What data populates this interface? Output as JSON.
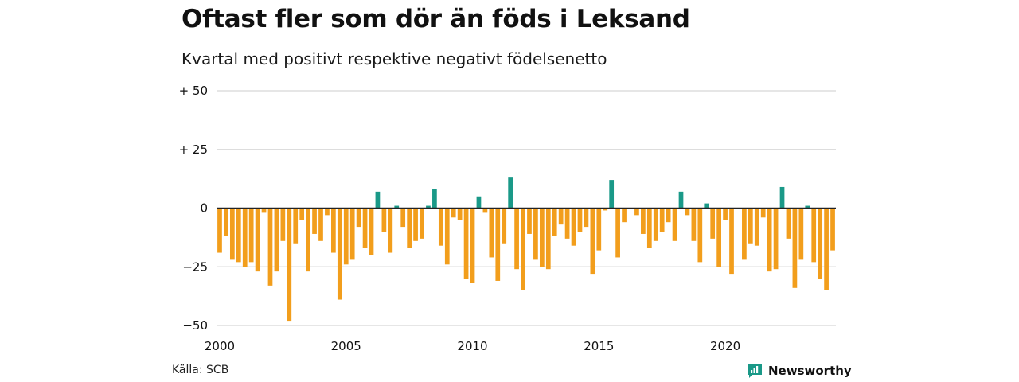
{
  "header": {
    "title": "Oftast fler som dör än föds i Leksand",
    "subtitle": "Kvartal med positivt respektive negativt födelsenetto"
  },
  "footer": {
    "source": "Källa: SCB",
    "brand": "Newsworthy",
    "brand_icon": "newsworthy-logo-icon"
  },
  "colors": {
    "positive": "#1a9988",
    "negative": "#f29e1c",
    "grid": "#dddddd",
    "baseline": "#222222",
    "brand": "#1a9988"
  },
  "chart_data": {
    "type": "bar",
    "title": "Oftast fler som dör än föds i Leksand",
    "subtitle": "Kvartal med positivt respektive negativt födelsenetto",
    "xlabel": "",
    "ylabel": "",
    "ylim": [
      -50,
      50
    ],
    "grid": true,
    "legend": "none",
    "y_ticks": [
      {
        "value": 50,
        "label": "+ 50"
      },
      {
        "value": 25,
        "label": "+ 25"
      },
      {
        "value": 0,
        "label": "0"
      },
      {
        "value": -25,
        "label": "−25"
      },
      {
        "value": -50,
        "label": "−50"
      }
    ],
    "x_ticks": [
      {
        "index": 0,
        "label": "2000"
      },
      {
        "index": 20,
        "label": "2005"
      },
      {
        "index": 40,
        "label": "2010"
      },
      {
        "index": 60,
        "label": "2015"
      },
      {
        "index": 80,
        "label": "2020"
      }
    ],
    "start_period": "2000 Q1",
    "values": [
      -19,
      -12,
      -22,
      -23,
      -25,
      -23,
      -27,
      -2,
      -33,
      -27,
      -14,
      -48,
      -15,
      -5,
      -27,
      -11,
      -14,
      -3,
      -19,
      -39,
      -24,
      -22,
      -8,
      -17,
      -20,
      7,
      -10,
      -19,
      1,
      -8,
      -17,
      -14,
      -13,
      1,
      8,
      -16,
      -24,
      -4,
      -5,
      -30,
      -32,
      5,
      -2,
      -21,
      -31,
      -15,
      13,
      -26,
      -35,
      -11,
      -22,
      -25,
      -26,
      -12,
      -7,
      -13,
      -16,
      -10,
      -8,
      -28,
      -18,
      -1,
      12,
      -21,
      -6,
      0,
      -3,
      -11,
      -17,
      -14,
      -10,
      -6,
      -14,
      7,
      -3,
      -14,
      -23,
      2,
      -13,
      -25,
      -5,
      -28,
      0,
      -22,
      -15,
      -16,
      -4,
      -27,
      -26,
      9,
      -13,
      -34,
      -22,
      1,
      -23,
      -30,
      -35,
      -18
    ]
  }
}
